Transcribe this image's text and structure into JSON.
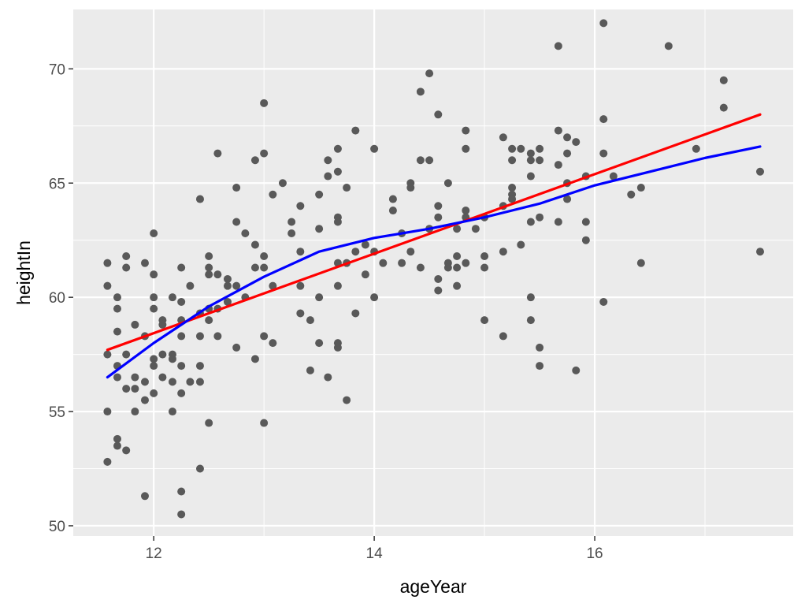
{
  "chart_data": {
    "type": "scatter",
    "title": "",
    "xlabel": "ageYear",
    "ylabel": "heightIn",
    "xlim": [
      11.27,
      17.8
    ],
    "ylim": [
      49.55,
      72.6
    ],
    "x_ticks": [
      12,
      14,
      16
    ],
    "x_tick_labels": [
      "12",
      "14",
      "16"
    ],
    "x_minor": [
      11,
      13,
      15,
      17
    ],
    "y_ticks": [
      50,
      55,
      60,
      65,
      70
    ],
    "y_tick_labels": [
      "50",
      "55",
      "60",
      "65",
      "70"
    ],
    "y_minor": [
      52.5,
      57.5,
      62.5,
      67.5
    ],
    "grid": true,
    "colors": {
      "panel": "#ebebeb",
      "grid": "#ffffff",
      "points": "#595959",
      "lm_line": "#ff0000",
      "loess_line": "#0000ff"
    },
    "points": [
      [
        11.58,
        61.5
      ],
      [
        11.58,
        60.5
      ],
      [
        11.58,
        57.5
      ],
      [
        11.58,
        55.0
      ],
      [
        11.58,
        52.8
      ],
      [
        11.67,
        60.0
      ],
      [
        11.67,
        59.5
      ],
      [
        11.67,
        58.5
      ],
      [
        11.67,
        57.0
      ],
      [
        11.67,
        56.5
      ],
      [
        11.67,
        53.8
      ],
      [
        11.67,
        53.5
      ],
      [
        11.75,
        61.8
      ],
      [
        11.75,
        61.3
      ],
      [
        11.75,
        57.5
      ],
      [
        11.75,
        56.0
      ],
      [
        11.75,
        53.3
      ],
      [
        11.83,
        58.8
      ],
      [
        11.83,
        56.5
      ],
      [
        11.83,
        56.0
      ],
      [
        11.83,
        55.0
      ],
      [
        11.92,
        61.5
      ],
      [
        11.92,
        58.3
      ],
      [
        11.92,
        56.3
      ],
      [
        11.92,
        55.5
      ],
      [
        11.92,
        51.3
      ],
      [
        12.0,
        62.8
      ],
      [
        12.0,
        61.0
      ],
      [
        12.0,
        60.0
      ],
      [
        12.0,
        59.5
      ],
      [
        12.0,
        57.3
      ],
      [
        12.0,
        57.0
      ],
      [
        12.0,
        55.8
      ],
      [
        12.08,
        59.0
      ],
      [
        12.08,
        58.8
      ],
      [
        12.08,
        57.5
      ],
      [
        12.08,
        56.5
      ],
      [
        12.17,
        60.0
      ],
      [
        12.17,
        57.5
      ],
      [
        12.17,
        57.3
      ],
      [
        12.17,
        56.3
      ],
      [
        12.17,
        55.0
      ],
      [
        12.25,
        61.3
      ],
      [
        12.25,
        59.8
      ],
      [
        12.25,
        59.0
      ],
      [
        12.25,
        58.3
      ],
      [
        12.25,
        57.0
      ],
      [
        12.25,
        55.8
      ],
      [
        12.25,
        51.5
      ],
      [
        12.25,
        50.5
      ],
      [
        12.33,
        60.5
      ],
      [
        12.33,
        56.3
      ],
      [
        12.42,
        64.3
      ],
      [
        12.42,
        59.3
      ],
      [
        12.42,
        58.3
      ],
      [
        12.42,
        57.0
      ],
      [
        12.42,
        56.3
      ],
      [
        12.42,
        52.5
      ],
      [
        12.5,
        61.8
      ],
      [
        12.5,
        61.3
      ],
      [
        12.5,
        61.0
      ],
      [
        12.5,
        59.5
      ],
      [
        12.5,
        59.0
      ],
      [
        12.5,
        54.5
      ],
      [
        12.58,
        66.3
      ],
      [
        12.58,
        61.0
      ],
      [
        12.58,
        59.5
      ],
      [
        12.58,
        58.3
      ],
      [
        12.67,
        60.8
      ],
      [
        12.67,
        60.5
      ],
      [
        12.67,
        59.8
      ],
      [
        12.75,
        64.8
      ],
      [
        12.75,
        63.3
      ],
      [
        12.75,
        60.5
      ],
      [
        12.75,
        57.8
      ],
      [
        12.83,
        62.8
      ],
      [
        12.83,
        60.0
      ],
      [
        12.92,
        66.0
      ],
      [
        12.92,
        62.3
      ],
      [
        12.92,
        61.3
      ],
      [
        12.92,
        57.3
      ],
      [
        13.0,
        68.5
      ],
      [
        13.0,
        66.3
      ],
      [
        13.0,
        61.8
      ],
      [
        13.0,
        61.3
      ],
      [
        13.0,
        58.3
      ],
      [
        13.0,
        54.5
      ],
      [
        13.08,
        64.5
      ],
      [
        13.08,
        60.5
      ],
      [
        13.08,
        58.0
      ],
      [
        13.17,
        65.0
      ],
      [
        13.25,
        63.3
      ],
      [
        13.25,
        62.8
      ],
      [
        13.33,
        64.0
      ],
      [
        13.33,
        62.0
      ],
      [
        13.33,
        60.5
      ],
      [
        13.33,
        59.3
      ],
      [
        13.42,
        59.0
      ],
      [
        13.42,
        56.8
      ],
      [
        13.5,
        64.5
      ],
      [
        13.5,
        63.0
      ],
      [
        13.5,
        60.0
      ],
      [
        13.5,
        58.0
      ],
      [
        13.58,
        66.0
      ],
      [
        13.58,
        65.3
      ],
      [
        13.58,
        56.5
      ],
      [
        13.67,
        66.5
      ],
      [
        13.67,
        65.5
      ],
      [
        13.67,
        63.5
      ],
      [
        13.67,
        63.3
      ],
      [
        13.67,
        61.5
      ],
      [
        13.67,
        60.5
      ],
      [
        13.67,
        58.0
      ],
      [
        13.67,
        57.8
      ],
      [
        13.75,
        64.8
      ],
      [
        13.75,
        61.5
      ],
      [
        13.75,
        55.5
      ],
      [
        13.83,
        67.3
      ],
      [
        13.83,
        62.0
      ],
      [
        13.83,
        59.3
      ],
      [
        13.92,
        62.3
      ],
      [
        13.92,
        61.0
      ],
      [
        14.0,
        66.5
      ],
      [
        14.0,
        62.0
      ],
      [
        14.0,
        60.0
      ],
      [
        14.08,
        61.5
      ],
      [
        14.17,
        64.3
      ],
      [
        14.17,
        63.8
      ],
      [
        14.25,
        62.8
      ],
      [
        14.25,
        61.5
      ],
      [
        14.33,
        65.0
      ],
      [
        14.33,
        64.8
      ],
      [
        14.33,
        62.0
      ],
      [
        14.42,
        69.0
      ],
      [
        14.42,
        66.0
      ],
      [
        14.42,
        61.3
      ],
      [
        14.5,
        69.8
      ],
      [
        14.5,
        66.0
      ],
      [
        14.5,
        63.0
      ],
      [
        14.58,
        68.0
      ],
      [
        14.58,
        64.0
      ],
      [
        14.58,
        63.5
      ],
      [
        14.58,
        60.8
      ],
      [
        14.58,
        60.3
      ],
      [
        14.67,
        65.0
      ],
      [
        14.67,
        61.5
      ],
      [
        14.67,
        61.3
      ],
      [
        14.75,
        61.8
      ],
      [
        14.75,
        61.3
      ],
      [
        14.75,
        60.5
      ],
      [
        14.75,
        63.0
      ],
      [
        14.83,
        67.3
      ],
      [
        14.83,
        66.5
      ],
      [
        14.83,
        63.8
      ],
      [
        14.83,
        63.5
      ],
      [
        14.83,
        61.5
      ],
      [
        14.92,
        63.0
      ],
      [
        15.0,
        63.5
      ],
      [
        15.0,
        61.8
      ],
      [
        15.0,
        61.3
      ],
      [
        15.0,
        59.0
      ],
      [
        15.17,
        67.0
      ],
      [
        15.17,
        64.0
      ],
      [
        15.17,
        62.0
      ],
      [
        15.17,
        58.3
      ],
      [
        15.25,
        66.5
      ],
      [
        15.25,
        66.0
      ],
      [
        15.25,
        64.8
      ],
      [
        15.25,
        64.5
      ],
      [
        15.25,
        64.3
      ],
      [
        15.33,
        66.5
      ],
      [
        15.33,
        62.3
      ],
      [
        15.42,
        66.3
      ],
      [
        15.42,
        66.0
      ],
      [
        15.42,
        65.3
      ],
      [
        15.42,
        63.3
      ],
      [
        15.42,
        60.0
      ],
      [
        15.42,
        59.0
      ],
      [
        15.5,
        66.5
      ],
      [
        15.5,
        66.0
      ],
      [
        15.5,
        63.5
      ],
      [
        15.5,
        57.8
      ],
      [
        15.5,
        57.0
      ],
      [
        15.67,
        71.0
      ],
      [
        15.67,
        67.3
      ],
      [
        15.67,
        65.8
      ],
      [
        15.67,
        63.3
      ],
      [
        15.75,
        67.0
      ],
      [
        15.75,
        66.3
      ],
      [
        15.75,
        65.0
      ],
      [
        15.75,
        64.3
      ],
      [
        15.83,
        66.8
      ],
      [
        15.83,
        56.8
      ],
      [
        15.92,
        65.3
      ],
      [
        15.92,
        63.3
      ],
      [
        15.92,
        62.5
      ],
      [
        16.08,
        72.0
      ],
      [
        16.08,
        67.8
      ],
      [
        16.08,
        66.3
      ],
      [
        16.08,
        59.8
      ],
      [
        16.17,
        65.3
      ],
      [
        16.33,
        64.5
      ],
      [
        16.42,
        64.8
      ],
      [
        16.42,
        61.5
      ],
      [
        16.67,
        71.0
      ],
      [
        16.92,
        66.5
      ],
      [
        17.17,
        69.5
      ],
      [
        17.17,
        68.3
      ],
      [
        17.5,
        65.5
      ],
      [
        17.5,
        62.0
      ]
    ],
    "series": [
      {
        "name": "lm",
        "color": "#ff0000",
        "x": [
          11.58,
          17.5
        ],
        "y": [
          57.7,
          68.0
        ]
      },
      {
        "name": "loess",
        "color": "#0000ff",
        "x": [
          11.58,
          12.0,
          12.5,
          13.0,
          13.5,
          14.0,
          14.5,
          15.0,
          15.5,
          16.0,
          16.5,
          17.0,
          17.5
        ],
        "y": [
          56.5,
          58.0,
          59.6,
          60.9,
          62.0,
          62.6,
          63.0,
          63.5,
          64.1,
          64.9,
          65.5,
          66.1,
          66.6
        ]
      }
    ]
  }
}
